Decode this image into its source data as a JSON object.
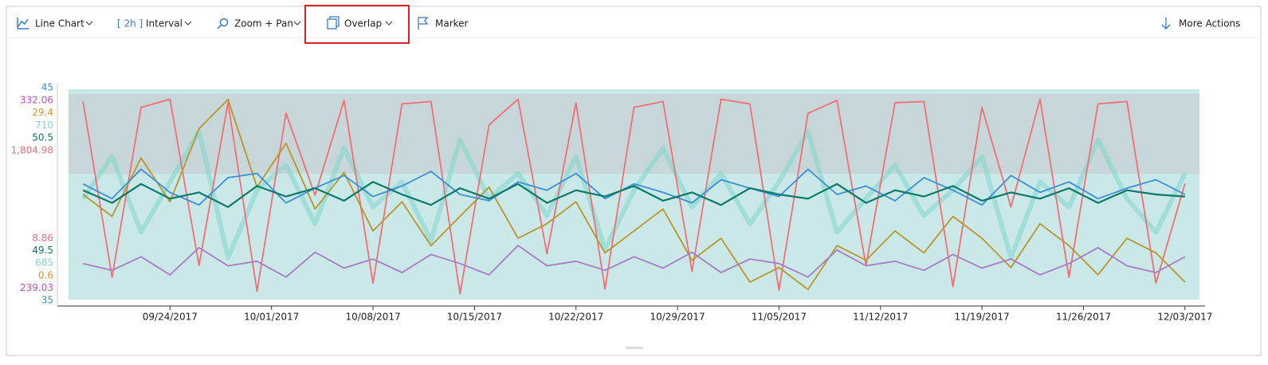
{
  "toolbar": {
    "items": [
      "Line Chart",
      "[ 2h ]",
      "Interval",
      "Zoom + Pan",
      "Overlap",
      "Marker"
    ],
    "more": "More Actions"
  },
  "chart_data": {
    "type": "line",
    "x": [
      "09/18/2017",
      "09/20/2017",
      "09/22/2017",
      "09/24/2017",
      "09/26/2017",
      "09/28/2017",
      "09/30/2017",
      "10/02/2017",
      "10/04/2017",
      "10/06/2017",
      "10/08/2017",
      "10/10/2017",
      "10/12/2017",
      "10/14/2017",
      "10/16/2017",
      "10/18/2017",
      "10/20/2017",
      "10/22/2017",
      "10/24/2017",
      "10/26/2017",
      "10/28/2017",
      "10/30/2017",
      "11/01/2017",
      "11/03/2017",
      "11/05/2017",
      "11/07/2017",
      "11/09/2017",
      "11/11/2017",
      "11/13/2017",
      "11/15/2017",
      "11/17/2017",
      "11/19/2017",
      "11/21/2017",
      "11/23/2017",
      "11/25/2017",
      "11/27/2017",
      "11/29/2017",
      "12/01/2017",
      "12/03/2017"
    ],
    "xlim": [
      "09/17/2017",
      "12/04/2017"
    ],
    "xticks": [
      "09/24/2017",
      "10/01/2017",
      "10/08/2017",
      "10/15/2017",
      "10/22/2017",
      "10/29/2017",
      "11/05/2017",
      "11/12/2017",
      "11/19/2017",
      "11/26/2017",
      "12/03/2017"
    ],
    "series": [
      {
        "color": "#3a8fd6",
        "ylim": [
          35,
          45
        ],
        "yticks": [
          35,
          45
        ],
        "values": [
          40.5,
          39.8,
          41.2,
          40.1,
          39.5,
          40.8,
          41,
          39.6,
          40.3,
          40.9,
          39.9,
          40.4,
          41.1,
          40,
          39.7,
          40.6,
          40.2,
          41,
          39.8,
          40.5,
          40.1,
          39.6,
          40.7,
          40.3,
          39.9,
          41.2,
          40,
          40.4,
          39.7,
          40.8,
          40.2,
          39.5,
          40.9,
          40.1,
          40.6,
          39.8,
          40.3,
          40.7,
          40
        ]
      },
      {
        "color": "#c94fc0",
        "ylim": [
          239.03,
          332.06
        ],
        "yticks": [
          239.03,
          332.06
        ],
        "values": [
          255,
          252,
          258,
          250,
          262,
          254,
          256,
          249,
          260,
          253,
          257,
          251,
          259,
          255,
          250,
          263,
          254,
          256,
          252,
          258,
          253,
          260,
          251,
          257,
          255,
          249,
          261,
          254,
          256,
          252,
          259,
          253,
          257,
          250,
          255,
          262,
          254,
          251,
          258
        ]
      },
      {
        "color": "#e8952a",
        "ylim": [
          0.6,
          29.4
        ],
        "yticks": [
          0.6,
          29.4
        ],
        "values": [
          15,
          12,
          20,
          14,
          24,
          28,
          16,
          22,
          13,
          18,
          10,
          14,
          8,
          12,
          16,
          9,
          11,
          14,
          7,
          10,
          13,
          6,
          9,
          3,
          5,
          2,
          8,
          6,
          10,
          7,
          12,
          9,
          5,
          11,
          8,
          4,
          9,
          7,
          3
        ]
      },
      {
        "color": "#7fd6cc",
        "ylim": [
          685,
          710
        ],
        "yticks": [
          685,
          710
        ],
        "values": [
          697,
          702,
          693,
          699,
          705,
          690,
          698,
          701,
          694,
          703,
          696,
          699,
          692,
          704,
          697,
          700,
          695,
          702,
          691,
          698,
          703,
          696,
          700,
          694,
          699,
          705,
          693,
          697,
          701,
          695,
          698,
          702,
          690,
          699,
          696,
          704,
          697,
          693,
          700
        ]
      },
      {
        "color": "#0a7a6a",
        "ylim": [
          49.5,
          50.5
        ],
        "yticks": [
          49.5,
          50.5
        ],
        "values": [
          50.02,
          49.96,
          50.05,
          49.98,
          50.01,
          49.94,
          50.04,
          49.99,
          50.03,
          49.97,
          50.06,
          50,
          49.95,
          50.03,
          49.98,
          50.05,
          49.96,
          50.02,
          49.99,
          50.04,
          49.97,
          50.01,
          49.95,
          50.03,
          50,
          49.98,
          50.05,
          49.96,
          50.02,
          49.99,
          50.04,
          49.97,
          50.01,
          49.98,
          50.03,
          49.96,
          50.02,
          50,
          49.99
        ]
      },
      {
        "color": "#f46d75",
        "ylim": [
          8.86,
          1804.98
        ],
        "yticks": [
          8.86,
          {
            "value": 1804.98,
            "label": "1,804.98"
          }
        ],
        "values": [
          1700,
          200,
          1650,
          1720,
          300,
          1690,
          80,
          1600,
          900,
          1710,
          150,
          1680,
          1700,
          60,
          1500,
          1720,
          400,
          1690,
          100,
          1650,
          1700,
          250,
          1720,
          1680,
          90,
          1600,
          1710,
          300,
          1690,
          1700,
          120,
          1650,
          800,
          1720,
          200,
          1680,
          1700,
          150,
          1000
        ]
      }
    ]
  }
}
